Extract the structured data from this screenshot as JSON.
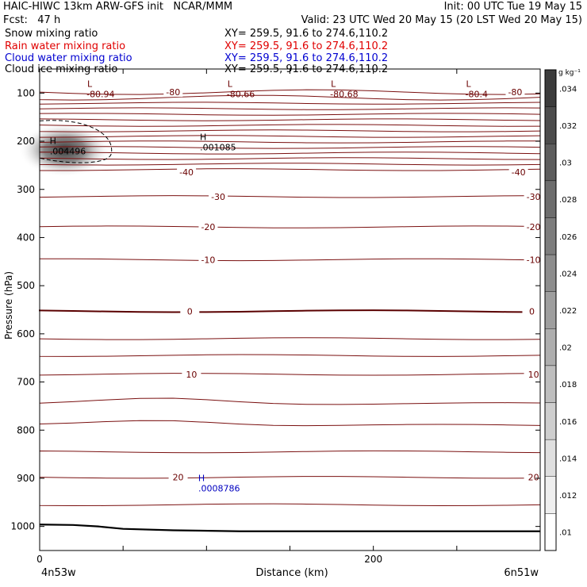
{
  "header": {
    "title": "HAIC-HIWC 13km ARW-GFS init   NCAR/MMM",
    "init": "Init: 00 UTC Tue 19 May 15",
    "fcst": "Fcst:   47 h",
    "valid": "Valid: 23 UTC Wed 20 May 15 (20 LST Wed 20 May 15)"
  },
  "fields": [
    {
      "name": "Snow mixing ratio",
      "xy": "XY= 259.5, 91.6 to 274.6,110.2",
      "color": "#000000"
    },
    {
      "name": "Rain water mixing ratio",
      "xy": "XY= 259.5, 91.6 to 274.6,110.2",
      "color": "#e00000"
    },
    {
      "name": "Cloud water mixing ratio",
      "xy": "XY= 259.5, 91.6 to 274.6,110.2",
      "color": "#0000d0"
    },
    {
      "name": "Cloud ice mixing ratio",
      "xy": "XY= 259.5, 91.6 to 274.6,110.2",
      "color": "#000000"
    }
  ],
  "chart_data": {
    "type": "heatmap",
    "ylabel": "Pressure (hPa)",
    "xlabel": "Distance (km)",
    "xlim": [
      0,
      300
    ],
    "ylim": [
      1050,
      50
    ],
    "x_ticks": [
      0,
      200
    ],
    "x_endpoints": [
      "4n53w",
      "6n51w"
    ],
    "y_ticks": [
      100,
      200,
      300,
      400,
      500,
      600,
      700,
      800,
      900,
      1000
    ],
    "temperature_contours": [
      {
        "value": "-80",
        "x": 80,
        "p": 98
      },
      {
        "value": "-80",
        "x": 285,
        "p": 98
      },
      {
        "value": "-40",
        "x": 88,
        "p": 264
      },
      {
        "value": "-40",
        "x": 287,
        "p": 264
      },
      {
        "value": "-30",
        "x": 107,
        "p": 315
      },
      {
        "value": "-30",
        "x": 296,
        "p": 315
      },
      {
        "value": "-20",
        "x": 101,
        "p": 378
      },
      {
        "value": "-20",
        "x": 296,
        "p": 378
      },
      {
        "value": "-10",
        "x": 101,
        "p": 446
      },
      {
        "value": "-10",
        "x": 296,
        "p": 446
      },
      {
        "value": "0",
        "x": 90,
        "p": 553
      },
      {
        "value": "0",
        "x": 295,
        "p": 553
      },
      {
        "value": "10",
        "x": 91,
        "p": 684
      },
      {
        "value": "10",
        "x": 296,
        "p": 684
      },
      {
        "value": "20",
        "x": 83,
        "p": 898
      },
      {
        "value": "20",
        "x": 296,
        "p": 898
      }
    ],
    "extrema": [
      {
        "type": "L",
        "value": "-80.94",
        "x": 30,
        "p": 100
      },
      {
        "type": "L",
        "value": "-80.66",
        "x": 114,
        "p": 100
      },
      {
        "type": "L",
        "value": "-80.68",
        "x": 176,
        "p": 100
      },
      {
        "type": "L",
        "value": "-80.4",
        "x": 257,
        "p": 100
      },
      {
        "type": "H",
        "value": ".004496",
        "x": 8,
        "p": 219
      },
      {
        "type": "H",
        "value": ".001085",
        "x": 98,
        "p": 211
      },
      {
        "type": "H",
        "value": ".0008786",
        "x": 97,
        "p": 919
      }
    ],
    "colorbar": {
      "unit": "g kg⁻¹",
      "ticks": [
        ".034",
        ".032",
        ".03",
        ".028",
        ".026",
        ".024",
        ".022",
        ".02",
        ".018",
        ".016",
        ".014",
        ".012",
        ".01"
      ]
    }
  }
}
